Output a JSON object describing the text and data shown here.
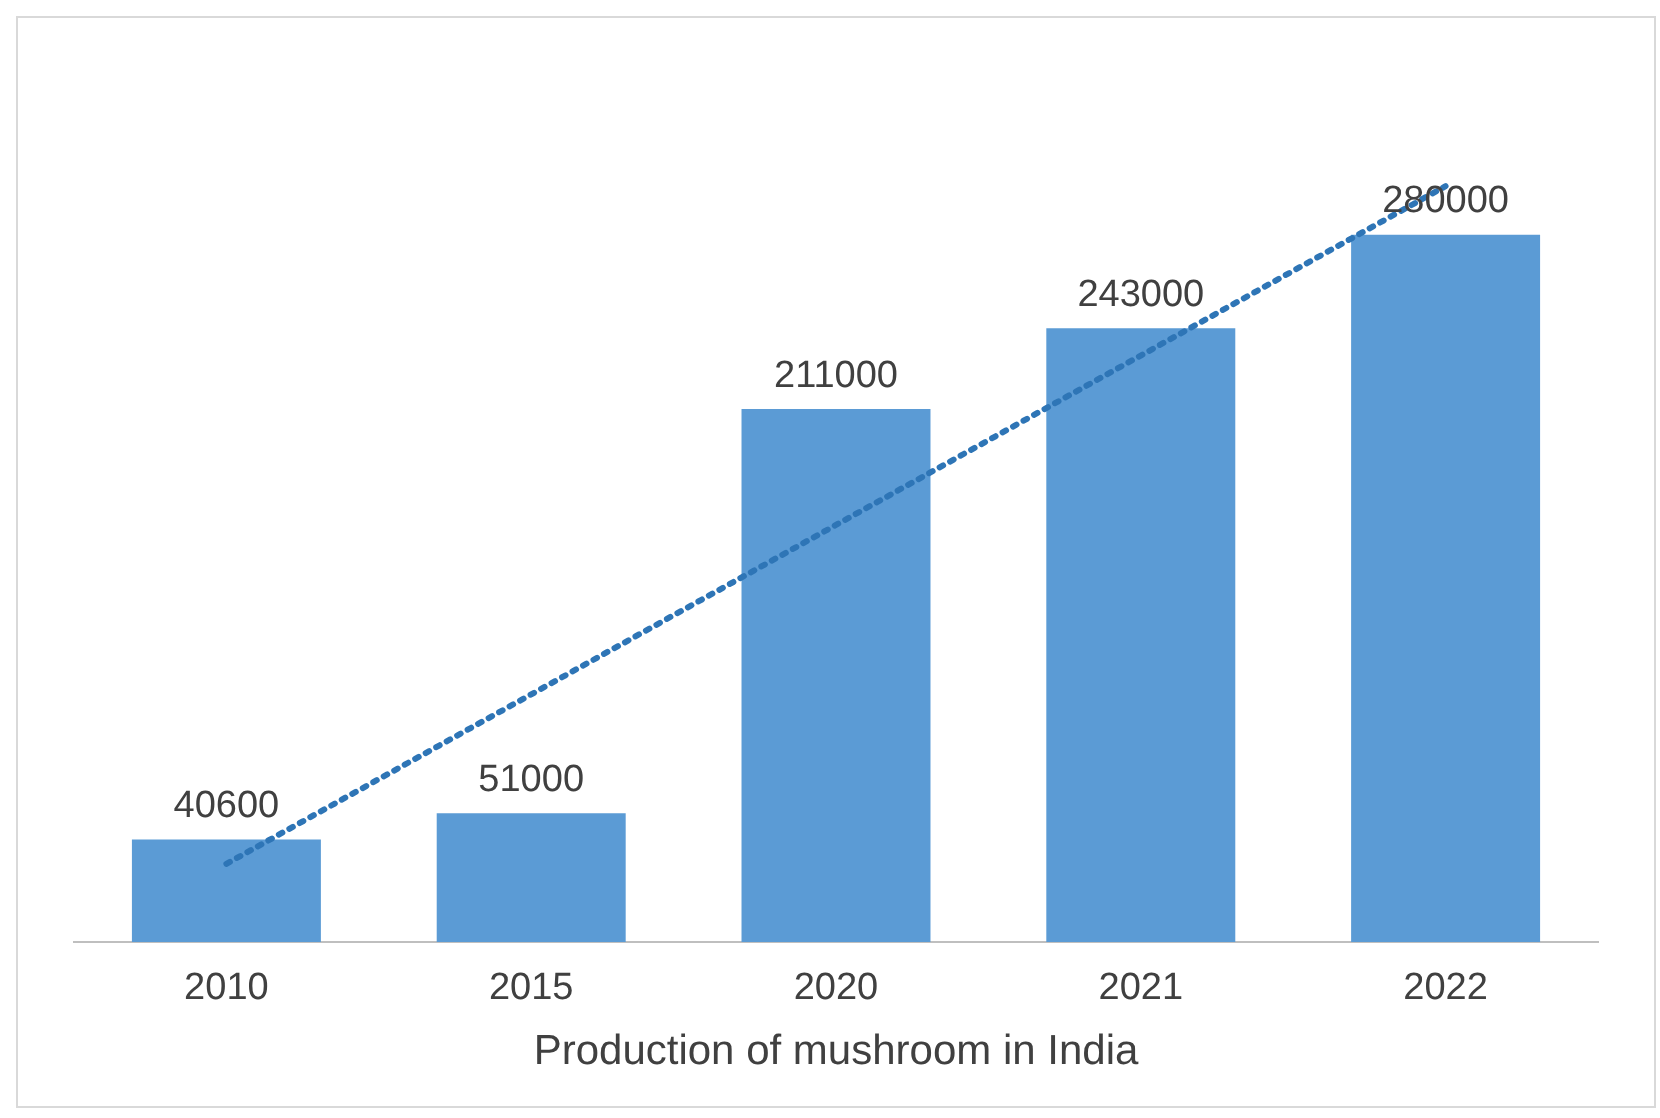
{
  "chart_data": {
    "type": "bar",
    "xlabel": "Production of mushroom in India",
    "categories": [
      "2010",
      "2015",
      "2020",
      "2021",
      "2022"
    ],
    "series": [
      {
        "color": "#5b9bd5",
        "values": [
          40600,
          51000,
          211000,
          243000,
          280000
        ],
        "value_labels": [
          "40600",
          "51000",
          "211000",
          "243000",
          "280000"
        ]
      },
      {
        "type": "line",
        "color": "#2e75b6",
        "values": [
          30960,
          98040,
          165120,
          232200,
          299280
        ],
        "line_style": "dotted",
        "marker": "none"
      }
    ],
    "grid": false,
    "legend": false
  }
}
